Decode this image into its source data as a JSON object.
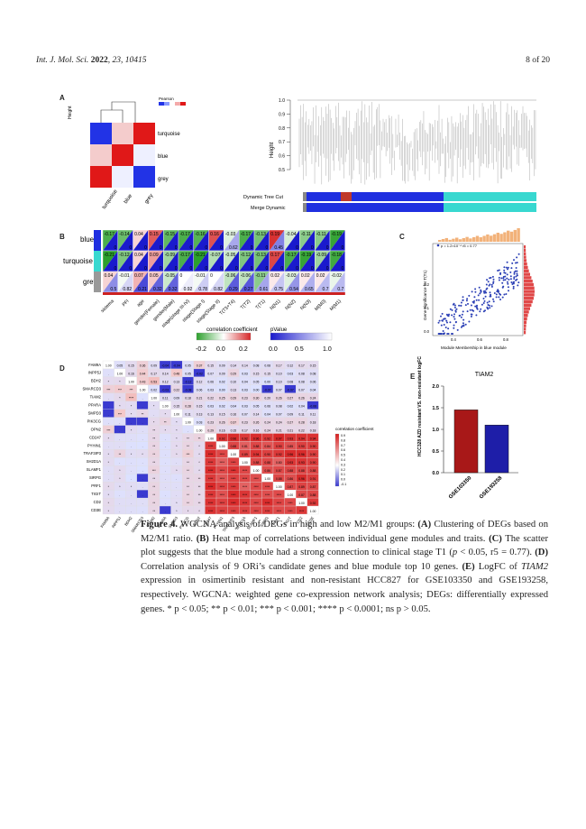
{
  "header": {
    "journal": "Int. J. Mol. Sci.",
    "year": "2022",
    "volume": "23",
    "article": "10415",
    "page": "8 of 20"
  },
  "panels": {
    "a": {
      "letter": "A",
      "y_axis_label": "Height",
      "legend_title": "Pearson",
      "modules": [
        "turquoise",
        "blue",
        "grey"
      ],
      "tree_title_y": "Height",
      "tree_ticks": [
        "1.0",
        "0.9",
        "0.8",
        "0.7",
        "0.6",
        "0.5"
      ],
      "dynamic_tree_cut": "Dynamic Tree Cut",
      "merge_dynamic": "Merge Dynamic"
    },
    "b": {
      "letter": "B",
      "rows": [
        "blue",
        "turquoise",
        "grey"
      ],
      "traits": [
        "sistema",
        "PFI",
        "age",
        "gender(Female)",
        "gender(Male)",
        "stage(stage III-IV)",
        "stage(Stage I)",
        "stage(Stage II)",
        "T(T3+T4)",
        "T(T2)",
        "T(T1)",
        "N(N1)",
        "N(N2)",
        "N(N3)",
        "M(M0)",
        "M(M1)"
      ],
      "corr_legend_title": "correlation coefficient",
      "corr_ticks": [
        "-0.2",
        "0.0",
        "0.2"
      ],
      "p_legend_title": "pValue",
      "p_ticks": [
        "0.0",
        "0.5",
        "1.0"
      ]
    },
    "c": {
      "letter": "C",
      "annotation": "p = 1.2×10⁻⁴ r5 = 0.77",
      "xlabel": "Module Membership in blue module",
      "ylabel": "Gene significance for T(T1)",
      "x_ticks": [
        "0.4",
        "0.6",
        "0.8"
      ],
      "y_ticks": [
        "0.0",
        "0.1",
        "0.2"
      ]
    },
    "d": {
      "letter": "D",
      "genes": [
        "FAM9A",
        "INPP5J",
        "BDH2",
        "SMARCD3",
        "TIAM2",
        "PPARA",
        "SMPD3",
        "PIK3CG",
        "OPN2",
        "CD247",
        "PYHIN1",
        "TRAF3IP3",
        "SH2D1A",
        "SLAMF1",
        "SIRPG",
        "PRF1",
        "TIGIT",
        "CD2",
        "CD3E"
      ],
      "legend_title": "correlation coefficient",
      "legend_ticks": [
        "0.9",
        "0.8",
        "0.7",
        "0.6",
        "0.5",
        "0.4",
        "0.3",
        "0.2",
        "0.1",
        "0.0",
        "-0.1"
      ]
    },
    "e": {
      "letter": "E",
      "title": "TIAM2",
      "ylabel": "HCC328 AZD resistant VS. non-resistant logFC",
      "y_ticks": [
        "0.0",
        "0.5",
        "1.0",
        "1.5",
        "2.0"
      ]
    }
  },
  "chart_data": [
    {
      "type": "bar",
      "title": "TIAM2",
      "categories": [
        "GSE103350",
        "GSE193258"
      ],
      "values": [
        1.45,
        1.1
      ],
      "ylabel": "HCC328 AZD resistant VS. non-resistant logFC",
      "ylim": [
        0,
        2.0
      ],
      "colors": [
        "#a81818",
        "#1e1ea8"
      ]
    },
    {
      "type": "heatmap",
      "rows": [
        "blue",
        "turquoise",
        "grey"
      ],
      "columns": [
        "sistema",
        "PFI",
        "age",
        "gender(Female)",
        "gender(Male)",
        "stage(stage III-IV)",
        "stage(Stage I)",
        "stage(Stage II)",
        "T(T3+T4)",
        "T(T2)",
        "T(T1)",
        "N(N1)",
        "N(N2)",
        "N(N3)",
        "M(M0)",
        "M(M1)"
      ],
      "values": [
        [
          -0.17,
          -0.14,
          0.04,
          0.15,
          -0.15,
          -0.17,
          -0.16,
          0.16,
          -0.03,
          -0.17,
          -0.13,
          0.19,
          -0.04,
          -0.11,
          -0.11,
          -0.19
        ],
        [
          -0.21,
          -0.12,
          0.04,
          0.09,
          -0.09,
          -0.17,
          -0.21,
          -0.07,
          -0.05,
          -0.12,
          -0.13,
          0.17,
          -0.17,
          -0.19,
          -0.09,
          -0.18
        ],
        [
          0.04,
          -0.01,
          0.07,
          0.05,
          -0.05,
          0.0,
          -0.01,
          0.0,
          -0.06,
          -0.06,
          -0.11,
          0.02,
          -0.03,
          0.02,
          0.02,
          -0.02
        ]
      ],
      "pvalues": [
        [
          0.0,
          0.0,
          0.0,
          0.0,
          0.0,
          0.0,
          0.0,
          0.0,
          0.62,
          0.0,
          0.0,
          0.45,
          0.0,
          0.0,
          0.0,
          0.0
        ],
        [
          0.0,
          0.0,
          0.0,
          0.0,
          0.0,
          0.0,
          0.0,
          0.0,
          0.0,
          0.0,
          0.0,
          0.0,
          0.0,
          0.0,
          0.0,
          0.0
        ],
        [
          0.5,
          0.82,
          0.21,
          0.32,
          0.32,
          0.92,
          0.78,
          0.82,
          0.29,
          0.27,
          0.61,
          0.75,
          0.54,
          0.65,
          0.7,
          0.7
        ]
      ],
      "corr_range": [
        -0.2,
        0.2
      ]
    },
    {
      "type": "heatmap",
      "rows": [
        "FAM9A",
        "INPP5J",
        "BDH2",
        "SMARCD3",
        "TIAM2",
        "PPARA",
        "SMPD3",
        "PIK3CG",
        "OPN2",
        "CD247",
        "PYHIN1",
        "TRAF3IP3",
        "SH2D1A",
        "SLAMF1",
        "SIRPG",
        "PRF1",
        "TIGIT",
        "CD2",
        "CD3E"
      ],
      "upper_values": [
        [
          1.0,
          0.05,
          0.15,
          0.36,
          0.09,
          -0.04,
          -0.04,
          0.05,
          0.37,
          0.15,
          0.09,
          0.14,
          0.14,
          0.08,
          0.08,
          0.17,
          0.12,
          0.17,
          0.15
        ],
        [
          null,
          1.0,
          0.16,
          0.44,
          0.17,
          0.14,
          0.48,
          0.05,
          -0.02,
          0.07,
          0.09,
          0.29,
          0.03,
          0.15,
          0.15,
          0.1,
          0.03,
          0.08,
          0.08
        ],
        [
          null,
          null,
          1.0,
          0.43,
          0.53,
          0.12,
          0.13,
          -0.12,
          0.12,
          0.06,
          0.02,
          0.1,
          0.04,
          0.05,
          0.0,
          0.1,
          0.08,
          0.08,
          0.06
        ],
        [
          null,
          null,
          null,
          1.0,
          0.02,
          -0.03,
          0.22,
          -0.08,
          0.06,
          0.03,
          0.0,
          0.13,
          0.03,
          0.0,
          -0.07,
          0.07,
          -0.07,
          0.07,
          0.04
        ],
        [
          null,
          null,
          null,
          null,
          1.0,
          0.11,
          0.09,
          0.18,
          0.21,
          0.22,
          0.25,
          0.29,
          0.23,
          0.3,
          0.2,
          0.26,
          0.27,
          0.26,
          0.24
        ],
        [
          null,
          null,
          null,
          null,
          null,
          1.0,
          0.15,
          0.28,
          0.15,
          0.03,
          0.02,
          0.04,
          0.03,
          0.05,
          0.06,
          0.08,
          0.02,
          0.04,
          -0.08
        ],
        [
          null,
          null,
          null,
          null,
          null,
          null,
          1.0,
          0.11,
          0.13,
          0.13,
          0.15,
          0.16,
          0.07,
          0.14,
          0.04,
          0.07,
          0.09,
          0.11,
          0.11
        ],
        [
          null,
          null,
          null,
          null,
          null,
          null,
          null,
          1.0,
          0.03,
          0.23,
          0.26,
          0.37,
          0.23,
          0.26,
          0.24,
          0.24,
          0.27,
          0.28,
          0.18
        ],
        [
          null,
          null,
          null,
          null,
          null,
          null,
          null,
          null,
          1.0,
          0.29,
          0.16,
          0.15,
          0.17,
          0.16,
          0.24,
          0.21,
          0.21,
          0.22,
          0.18
        ],
        [
          null,
          null,
          null,
          null,
          null,
          null,
          null,
          null,
          null,
          1.0,
          0.92,
          0.96,
          0.92,
          0.96,
          0.92,
          0.97,
          0.93,
          0.94,
          0.94
        ],
        [
          null,
          null,
          null,
          null,
          null,
          null,
          null,
          null,
          null,
          null,
          1.0,
          0.88,
          0.81,
          0.88,
          0.84,
          0.9,
          0.85,
          0.9,
          0.9
        ],
        [
          null,
          null,
          null,
          null,
          null,
          null,
          null,
          null,
          null,
          null,
          null,
          1.0,
          0.89,
          0.94,
          0.9,
          0.92,
          0.96,
          0.96,
          0.9
        ],
        [
          null,
          null,
          null,
          null,
          null,
          null,
          null,
          null,
          null,
          null,
          null,
          null,
          1.0,
          0.88,
          0.88,
          0.8,
          0.93,
          0.93,
          0.9
        ],
        [
          null,
          null,
          null,
          null,
          null,
          null,
          null,
          null,
          null,
          null,
          null,
          null,
          null,
          1.0,
          0.86,
          0.87,
          0.88,
          0.88,
          0.88
        ],
        [
          null,
          null,
          null,
          null,
          null,
          null,
          null,
          null,
          null,
          null,
          null,
          null,
          null,
          null,
          1.0,
          0.88,
          0.86,
          0.96,
          0.91
        ],
        [
          null,
          null,
          null,
          null,
          null,
          null,
          null,
          null,
          null,
          null,
          null,
          null,
          null,
          null,
          null,
          1.0,
          0.87,
          0.89,
          0.87
        ],
        [
          null,
          null,
          null,
          null,
          null,
          null,
          null,
          null,
          null,
          null,
          null,
          null,
          null,
          null,
          null,
          null,
          1.0,
          0.87,
          0.88
        ],
        [
          null,
          null,
          null,
          null,
          null,
          null,
          null,
          null,
          null,
          null,
          null,
          null,
          null,
          null,
          null,
          null,
          null,
          1.0,
          0.92
        ],
        [
          null,
          null,
          null,
          null,
          null,
          null,
          null,
          null,
          null,
          null,
          null,
          null,
          null,
          null,
          null,
          null,
          null,
          null,
          1.0
        ]
      ]
    }
  ],
  "caption": {
    "label": "Figure 4.",
    "intro": "WGCNA analysis of DEGs in high and low M2/M1 groups: ",
    "a_label": "(A)",
    "a_text": " Clustering of DEGs based on M2/M1 ratio. ",
    "b_label": "(B)",
    "b_text": " Heat map of correlations between individual gene modules and traits. ",
    "c_label": "(C)",
    "c_text": " The scatter plot suggests that the blue module had a strong connection to clinical stage T1 (",
    "c_p": "p",
    "c_text2": " < 0.05, r5 = 0.77). ",
    "d_label": "(D)",
    "d_text": " Correlation analysis of 9 ORi’s candidate genes and blue module top 10 genes. ",
    "e_label": "(E)",
    "e_text": " LogFC of ",
    "e_gene": "TIAM2",
    "e_text2": " expression in osimertinib resistant and non-resistant HCC827 for GSE103350 and GSE193258, respectively. WGCNA: weighted gene co-expression network analysis; DEGs: differentially expressed genes. * ",
    "sig1": "p < 0.05; ** ",
    "sig2": "p < 0.01; *** ",
    "sig3": "p < 0.001; **** ",
    "sig4": "p < 0.0001; ns ",
    "sig5": "p > 0.05."
  }
}
